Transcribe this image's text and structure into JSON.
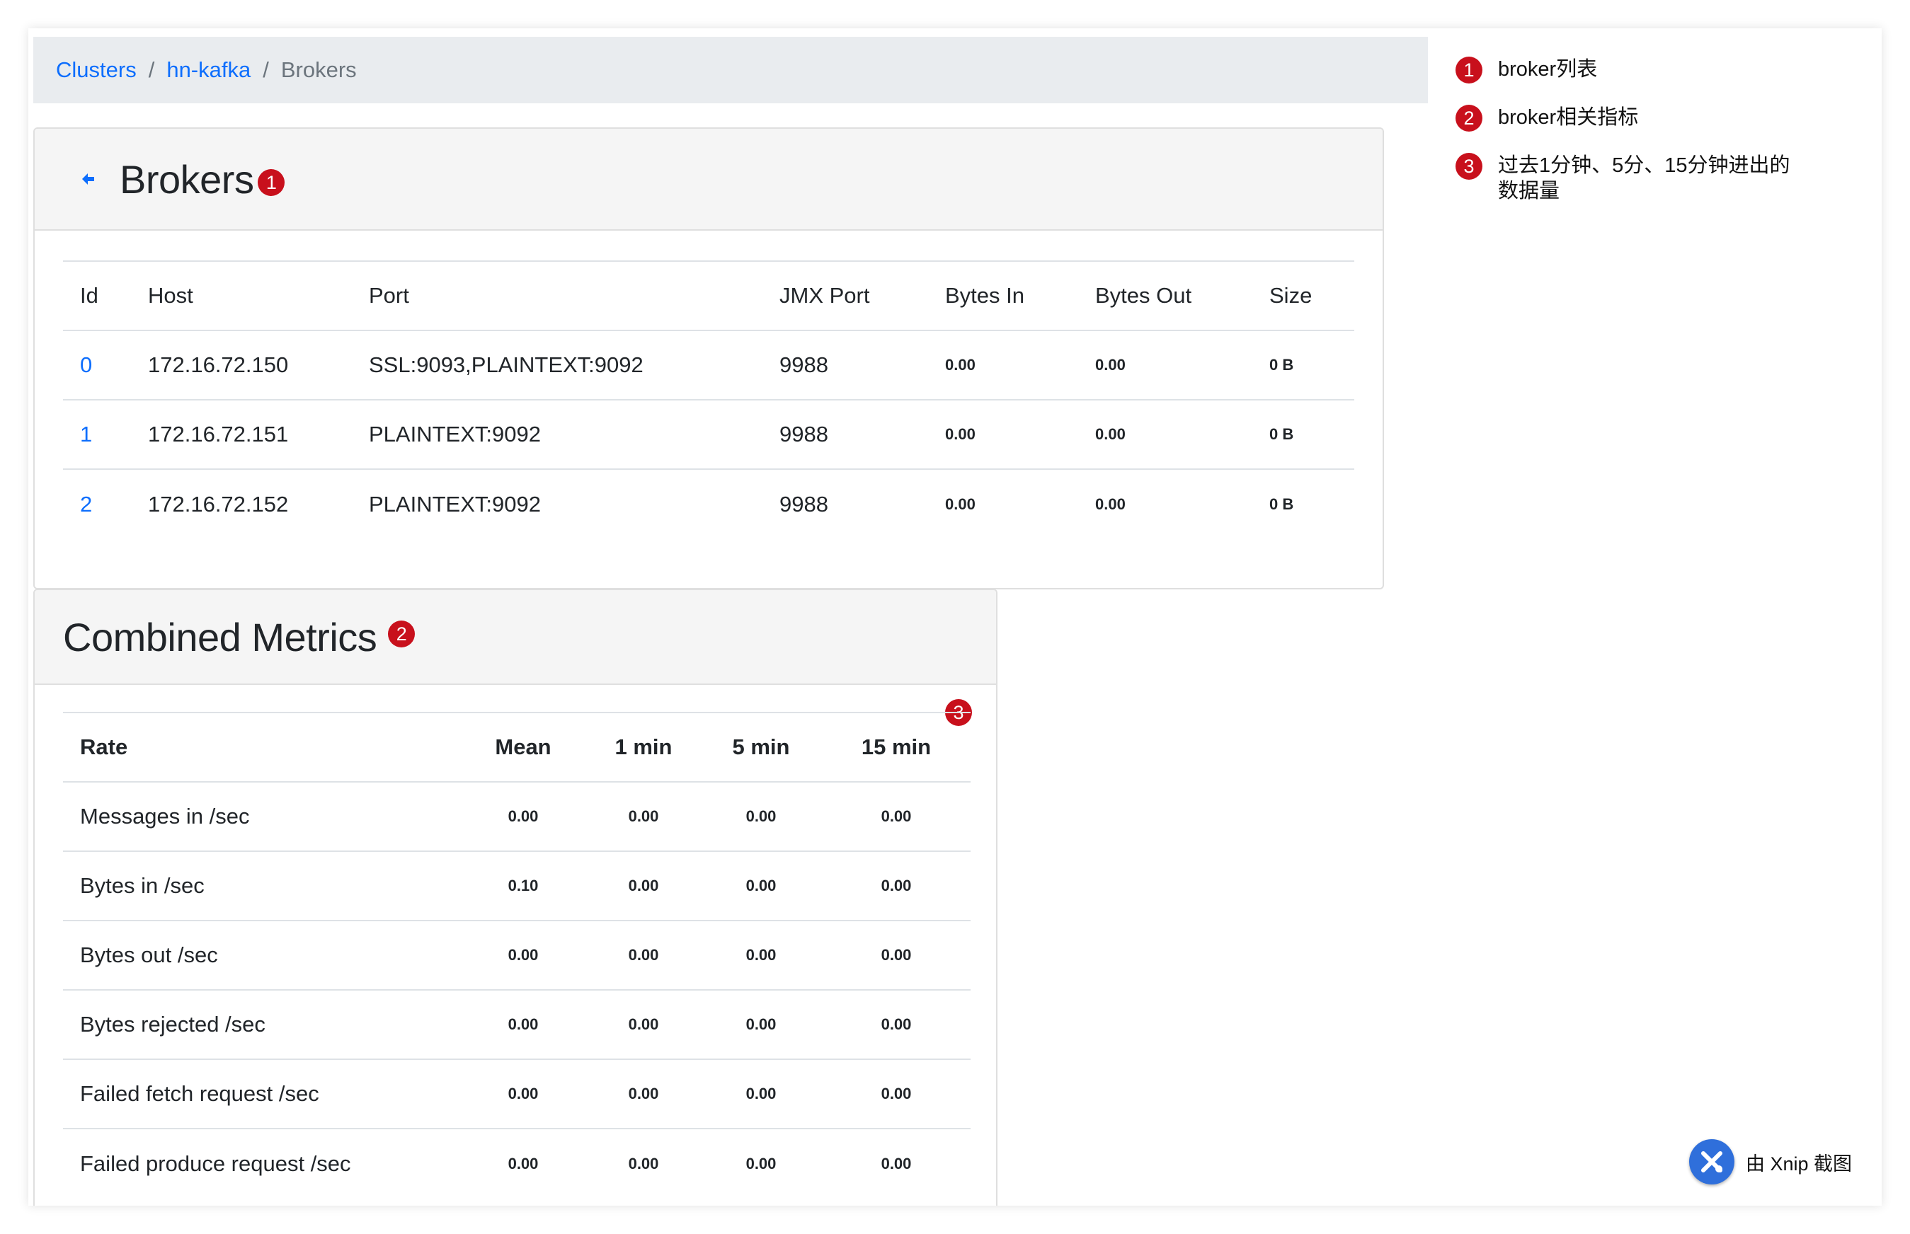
{
  "breadcrumb": {
    "clusters": "Clusters",
    "cluster": "hn-kafka",
    "current": "Brokers",
    "sep": "/"
  },
  "brokers": {
    "title": "Brokers",
    "badge": "1",
    "columns": [
      "Id",
      "Host",
      "Port",
      "JMX Port",
      "Bytes In",
      "Bytes Out",
      "Size"
    ],
    "rows": [
      {
        "id": "0",
        "host": "172.16.72.150",
        "port": "SSL:9093,PLAINTEXT:9092",
        "jmx": "9988",
        "bytes_in": "0.00",
        "bytes_out": "0.00",
        "size": "0 B"
      },
      {
        "id": "1",
        "host": "172.16.72.151",
        "port": "PLAINTEXT:9092",
        "jmx": "9988",
        "bytes_in": "0.00",
        "bytes_out": "0.00",
        "size": "0 B"
      },
      {
        "id": "2",
        "host": "172.16.72.152",
        "port": "PLAINTEXT:9092",
        "jmx": "9988",
        "bytes_in": "0.00",
        "bytes_out": "0.00",
        "size": "0 B"
      }
    ]
  },
  "metrics": {
    "title": "Combined Metrics",
    "badge": "2",
    "col_badge": "3",
    "columns": [
      "Rate",
      "Mean",
      "1 min",
      "5 min",
      "15 min"
    ],
    "rows": [
      {
        "label": "Messages in /sec",
        "mean": "0.00",
        "m1": "0.00",
        "m5": "0.00",
        "m15": "0.00"
      },
      {
        "label": "Bytes in /sec",
        "mean": "0.10",
        "m1": "0.00",
        "m5": "0.00",
        "m15": "0.00"
      },
      {
        "label": "Bytes out /sec",
        "mean": "0.00",
        "m1": "0.00",
        "m5": "0.00",
        "m15": "0.00"
      },
      {
        "label": "Bytes rejected /sec",
        "mean": "0.00",
        "m1": "0.00",
        "m5": "0.00",
        "m15": "0.00"
      },
      {
        "label": "Failed fetch request /sec",
        "mean": "0.00",
        "m1": "0.00",
        "m5": "0.00",
        "m15": "0.00"
      },
      {
        "label": "Failed produce request /sec",
        "mean": "0.00",
        "m1": "0.00",
        "m5": "0.00",
        "m15": "0.00"
      }
    ]
  },
  "legend": [
    {
      "num": "1",
      "text": "broker列表"
    },
    {
      "num": "2",
      "text": "broker相关指标"
    },
    {
      "num": "3",
      "text": "过去1分钟、5分、15分钟进出的数据量"
    }
  ],
  "watermark": "由 Xnip 截图",
  "colors": {
    "link": "#0d6efd",
    "badge": "#c8101c",
    "header_bg": "#f5f5f5",
    "breadcrumb_bg": "#e9ecef"
  }
}
